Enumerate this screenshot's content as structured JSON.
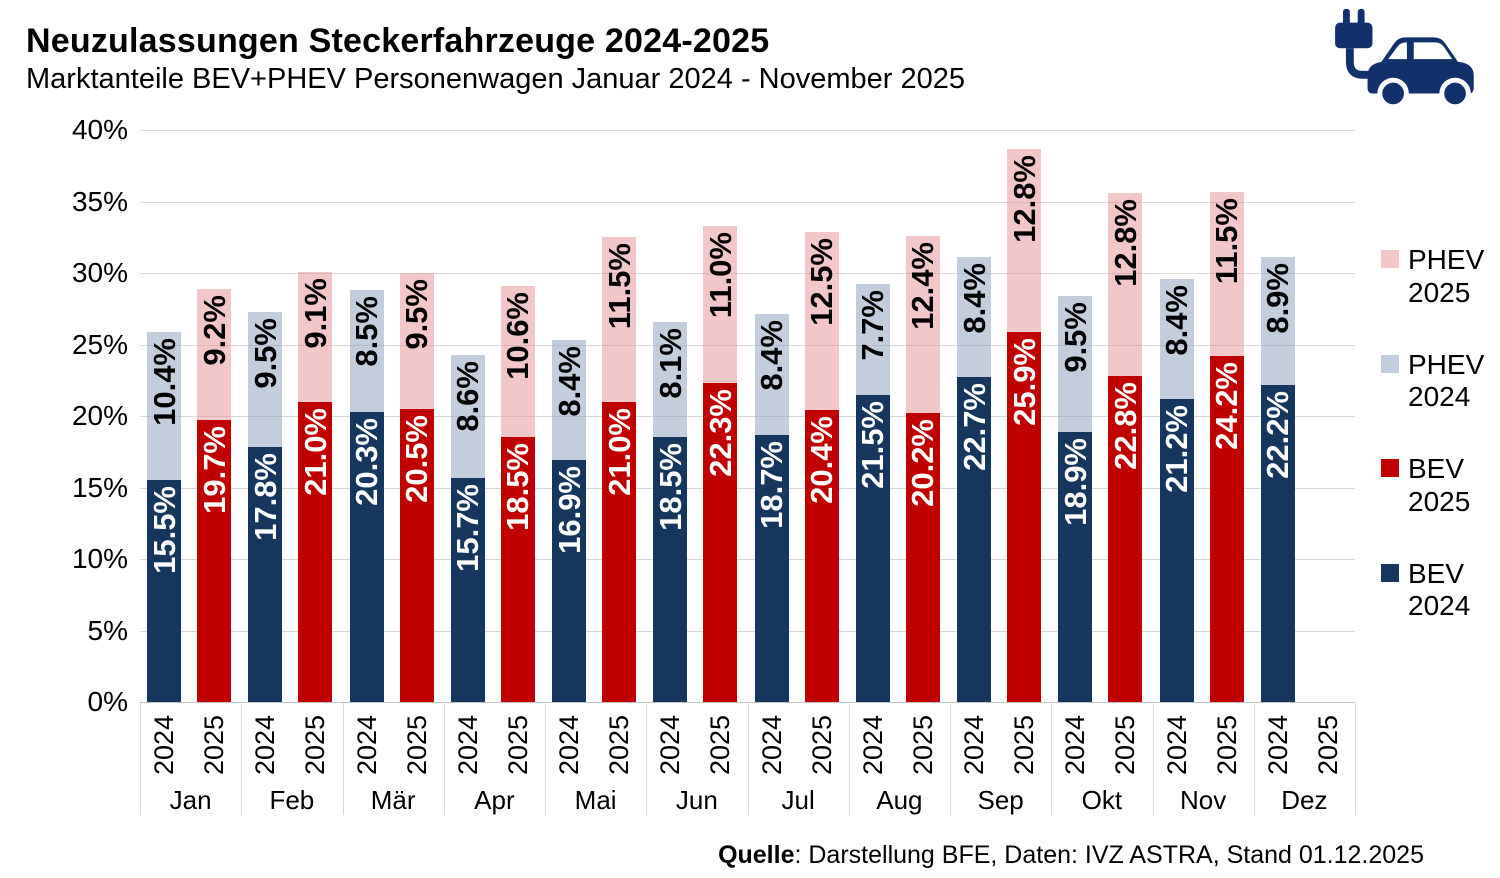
{
  "header": {
    "title": "Neuzulassungen Steckerfahrzeuge 2024-2025",
    "subtitle": "Marktanteile BEV+PHEV Personenwagen Januar 2024 - November 2025"
  },
  "chart_data": {
    "type": "bar",
    "stacked": true,
    "title": "Neuzulassungen Steckerfahrzeuge 2024-2025",
    "subtitle": "Marktanteile BEV+PHEV Personenwagen Januar 2024 - November 2025",
    "categories": [
      "Jan",
      "Feb",
      "Mär",
      "Apr",
      "Mai",
      "Jun",
      "Jul",
      "Aug",
      "Sep",
      "Okt",
      "Nov",
      "Dez"
    ],
    "group_labels": [
      "2024",
      "2025"
    ],
    "unit": "%",
    "ylim": [
      0,
      40
    ],
    "ytick_step": 5,
    "ytick_labels": [
      "0%",
      "5%",
      "10%",
      "15%",
      "20%",
      "25%",
      "30%",
      "35%",
      "40%"
    ],
    "grid": true,
    "legend_position": "right",
    "series": [
      {
        "name": "BEV 2024",
        "group": "2024",
        "stack_order": 0,
        "color": "#17365d",
        "label_color": "#ffffff",
        "values": [
          15.5,
          17.8,
          20.3,
          15.7,
          16.9,
          18.5,
          18.7,
          21.5,
          22.7,
          18.9,
          21.2,
          22.2
        ]
      },
      {
        "name": "PHEV 2024",
        "group": "2024",
        "stack_order": 1,
        "color": "rgba(138,155,186,0.5)",
        "label_color": "#000000",
        "values": [
          10.4,
          9.5,
          8.5,
          8.6,
          8.4,
          8.1,
          8.4,
          7.7,
          8.4,
          9.5,
          8.4,
          8.9
        ]
      },
      {
        "name": "BEV 2025",
        "group": "2025",
        "stack_order": 0,
        "color": "#c00000",
        "label_color": "#ffffff",
        "values": [
          19.7,
          21.0,
          20.5,
          18.5,
          21.0,
          22.3,
          20.4,
          20.2,
          25.9,
          22.8,
          24.2,
          null
        ]
      },
      {
        "name": "PHEV 2025",
        "group": "2025",
        "stack_order": 1,
        "color": "rgba(229,143,149,0.5)",
        "label_color": "#000000",
        "values": [
          9.2,
          9.1,
          9.5,
          10.6,
          11.5,
          11.0,
          12.5,
          12.4,
          12.8,
          12.8,
          11.5,
          null
        ]
      }
    ]
  },
  "legend": {
    "items": [
      {
        "name": "PHEV 2025",
        "line1": "PHEV",
        "line2": "2025",
        "color": "rgba(229,143,149,0.5)"
      },
      {
        "name": "PHEV 2024",
        "line1": "PHEV",
        "line2": "2024",
        "color": "rgba(138,155,186,0.5)"
      },
      {
        "name": "BEV 2025",
        "line1": "BEV",
        "line2": "2025",
        "color": "#c00000"
      },
      {
        "name": "BEV 2024",
        "line1": "BEV",
        "line2": "2024",
        "color": "#17365d"
      }
    ]
  },
  "icon": {
    "name": "ev-car-icon",
    "color": "#12316b"
  },
  "footer": {
    "source_bold": "Quelle",
    "source_rest": ": Darstellung BFE, Daten: IVZ ASTRA, Stand 01.12.2025"
  },
  "colors": {
    "bev_2024": "#17365d",
    "bev_2025": "#c00000",
    "phev_2024_appearance": "#c4cddc",
    "phev_2025_appearance": "#f2c7ca",
    "gridline": "#d9d9d9",
    "axis_line": "#c6c6c6"
  }
}
